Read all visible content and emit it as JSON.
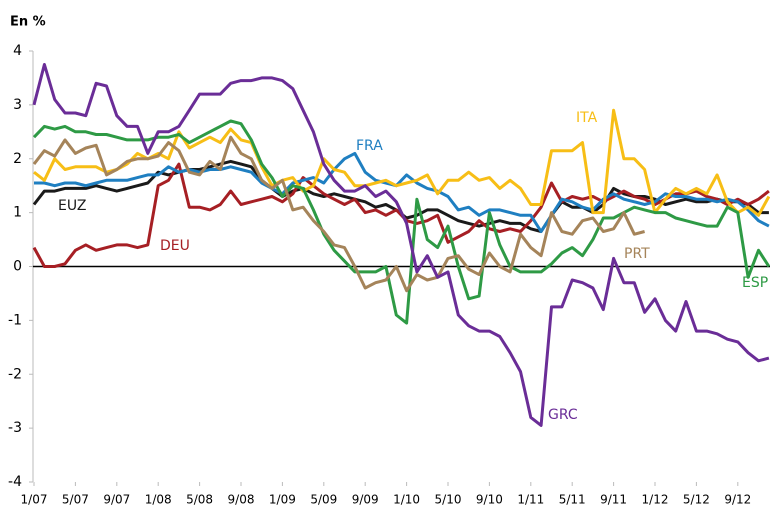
{
  "chart_data": {
    "type": "line",
    "title": "En %",
    "categories": [
      "1/07",
      null,
      null,
      null,
      "5/07",
      null,
      null,
      null,
      "9/07",
      null,
      null,
      null,
      "1/08",
      null,
      null,
      null,
      "5/08",
      null,
      null,
      null,
      "9/08",
      null,
      null,
      null,
      "1/09",
      null,
      null,
      null,
      "5/09",
      null,
      null,
      null,
      "9/09",
      null,
      null,
      null,
      "1/10",
      null,
      null,
      null,
      "5/10",
      null,
      null,
      null,
      "9/10",
      null,
      null,
      null,
      "1/11",
      null,
      null,
      null,
      "5/11",
      null,
      null,
      null,
      "9/11",
      null,
      null,
      null,
      "1/12",
      null,
      null,
      null,
      "5/12",
      null,
      null,
      null,
      "9/12",
      null,
      null,
      null
    ],
    "ylim": [
      -4,
      4
    ],
    "yticks": [
      -4,
      -3,
      -2,
      -1,
      0,
      1,
      2,
      3,
      4
    ],
    "series": [
      {
        "name": "EUZ",
        "color": "#1a1a1a",
        "values": [
          1.15,
          1.4,
          1.4,
          1.45,
          1.45,
          1.45,
          1.5,
          1.45,
          1.4,
          1.45,
          1.5,
          1.55,
          1.75,
          1.7,
          1.75,
          1.8,
          1.8,
          1.85,
          1.9,
          1.95,
          1.9,
          1.85,
          1.6,
          1.45,
          1.3,
          1.4,
          1.45,
          1.35,
          1.3,
          1.35,
          1.3,
          1.25,
          1.2,
          1.1,
          1.15,
          1.05,
          0.9,
          0.95,
          1.05,
          1.05,
          0.95,
          0.85,
          0.8,
          0.75,
          0.8,
          0.85,
          0.8,
          0.8,
          0.7,
          0.65,
          0.95,
          1.2,
          1.1,
          1.1,
          1.0,
          1.15,
          1.45,
          1.35,
          1.3,
          1.3,
          1.25,
          1.15,
          1.2,
          1.25,
          1.2,
          1.2,
          1.25,
          1.2,
          1.2,
          1.15,
          1.0,
          1.0
        ]
      },
      {
        "name": "DEU",
        "color": "#a61f24",
        "values": [
          0.35,
          0.0,
          0.0,
          0.05,
          0.3,
          0.4,
          0.3,
          0.35,
          0.4,
          0.4,
          0.35,
          0.4,
          1.5,
          1.6,
          1.9,
          1.1,
          1.1,
          1.05,
          1.15,
          1.4,
          1.15,
          1.2,
          1.25,
          1.3,
          1.2,
          1.35,
          1.65,
          1.5,
          1.35,
          1.25,
          1.15,
          1.25,
          1.0,
          1.05,
          0.95,
          1.05,
          0.85,
          0.8,
          0.85,
          0.95,
          0.45,
          0.55,
          0.65,
          0.85,
          0.7,
          0.65,
          0.7,
          0.65,
          0.85,
          1.1,
          1.55,
          1.2,
          1.3,
          1.25,
          1.3,
          1.2,
          1.3,
          1.4,
          1.3,
          1.25,
          1.15,
          1.25,
          1.35,
          1.35,
          1.4,
          1.3,
          1.25,
          1.15,
          1.25,
          1.15,
          1.25,
          1.4
        ]
      },
      {
        "name": "FRA",
        "color": "#1f7fc1",
        "values": [
          1.55,
          1.55,
          1.5,
          1.55,
          1.55,
          1.5,
          1.55,
          1.6,
          1.6,
          1.6,
          1.65,
          1.7,
          1.7,
          1.85,
          1.75,
          1.8,
          1.75,
          1.8,
          1.8,
          1.85,
          1.8,
          1.75,
          1.55,
          1.45,
          1.35,
          1.55,
          1.6,
          1.65,
          1.55,
          1.8,
          2.0,
          2.1,
          1.75,
          1.6,
          1.55,
          1.5,
          1.7,
          1.55,
          1.45,
          1.4,
          1.3,
          1.05,
          1.1,
          0.95,
          1.05,
          1.05,
          1.0,
          0.95,
          0.95,
          0.65,
          0.95,
          1.25,
          1.2,
          1.1,
          1.05,
          1.25,
          1.35,
          1.25,
          1.2,
          1.15,
          1.2,
          1.35,
          1.3,
          1.3,
          1.25,
          1.25,
          1.2,
          1.25,
          1.2,
          1.05,
          0.85,
          0.75
        ]
      },
      {
        "name": "ITA",
        "color": "#f7be16",
        "values": [
          1.75,
          1.6,
          2.0,
          1.8,
          1.85,
          1.85,
          1.85,
          1.75,
          1.8,
          1.9,
          2.1,
          2.0,
          2.1,
          2.0,
          2.5,
          2.2,
          2.3,
          2.4,
          2.3,
          2.55,
          2.35,
          2.3,
          1.85,
          1.5,
          1.6,
          1.65,
          1.4,
          1.5,
          2.0,
          1.8,
          1.75,
          1.5,
          1.5,
          1.55,
          1.6,
          1.5,
          1.55,
          1.6,
          1.7,
          1.35,
          1.6,
          1.6,
          1.75,
          1.6,
          1.65,
          1.45,
          1.6,
          1.45,
          1.15,
          1.15,
          2.15,
          2.15,
          2.15,
          2.3,
          1.0,
          1.0,
          2.9,
          2.0,
          2.0,
          1.8,
          1.0,
          1.25,
          1.45,
          1.35,
          1.45,
          1.35,
          1.7,
          1.2,
          1.0,
          1.1,
          0.95,
          1.3
        ]
      },
      {
        "name": "ESP",
        "color": "#2e9a45",
        "values": [
          2.4,
          2.6,
          2.55,
          2.6,
          2.5,
          2.5,
          2.45,
          2.45,
          2.4,
          2.35,
          2.35,
          2.35,
          2.4,
          2.4,
          2.45,
          2.3,
          2.4,
          2.5,
          2.6,
          2.7,
          2.65,
          2.35,
          1.9,
          1.65,
          1.3,
          1.5,
          1.45,
          1.05,
          0.6,
          0.3,
          0.1,
          -0.1,
          -0.1,
          -0.1,
          0.0,
          -0.9,
          -1.05,
          1.25,
          0.5,
          0.35,
          0.75,
          0.0,
          -0.6,
          -0.55,
          1.0,
          0.4,
          0.0,
          -0.1,
          -0.1,
          -0.1,
          0.05,
          0.25,
          0.35,
          0.2,
          0.5,
          0.9,
          0.9,
          1.0,
          1.1,
          1.05,
          1.0,
          1.0,
          0.9,
          0.85,
          0.8,
          0.75,
          0.75,
          1.1,
          1.0,
          -0.2,
          0.3,
          0.0
        ]
      },
      {
        "name": "PRT",
        "color": "#a5845a",
        "values": [
          1.9,
          2.15,
          2.05,
          2.35,
          2.1,
          2.2,
          2.25,
          1.7,
          1.8,
          1.95,
          2.0,
          2.0,
          2.05,
          2.3,
          2.15,
          1.75,
          1.7,
          1.95,
          1.8,
          2.4,
          2.1,
          2.0,
          1.6,
          1.45,
          1.6,
          1.05,
          1.1,
          0.85,
          0.65,
          0.4,
          0.35,
          0.0,
          -0.4,
          -0.3,
          -0.25,
          0.0,
          -0.45,
          -0.15,
          -0.25,
          -0.2,
          0.15,
          0.2,
          -0.05,
          -0.15,
          0.25,
          0.0,
          -0.1,
          0.6,
          0.35,
          0.2,
          1.0,
          0.65,
          0.6,
          0.85,
          0.9,
          0.65,
          0.7,
          1.0,
          0.6,
          0.65,
          null,
          null,
          null,
          null,
          null,
          null,
          null,
          null,
          null,
          null,
          null,
          null
        ]
      },
      {
        "name": "GRC",
        "color": "#6a2d97",
        "values": [
          3.0,
          3.75,
          3.1,
          2.85,
          2.85,
          2.8,
          3.4,
          3.35,
          2.8,
          2.6,
          2.6,
          2.1,
          2.5,
          2.5,
          2.6,
          2.9,
          3.2,
          3.2,
          3.2,
          3.4,
          3.45,
          3.45,
          3.5,
          3.5,
          3.45,
          3.3,
          2.9,
          2.5,
          1.9,
          1.6,
          1.4,
          1.4,
          1.5,
          1.3,
          1.4,
          1.2,
          0.8,
          -0.1,
          0.2,
          -0.2,
          -0.1,
          -0.9,
          -1.1,
          -1.2,
          -1.2,
          -1.3,
          -1.6,
          -1.95,
          -2.8,
          -2.95,
          -0.75,
          -0.75,
          -0.25,
          -0.3,
          -0.4,
          -0.8,
          0.15,
          -0.3,
          -0.3,
          -0.85,
          -0.6,
          -1.0,
          -1.2,
          -0.65,
          -1.2,
          -1.2,
          -1.25,
          -1.35,
          -1.4,
          -1.6,
          -1.75,
          -1.7
        ]
      }
    ]
  }
}
